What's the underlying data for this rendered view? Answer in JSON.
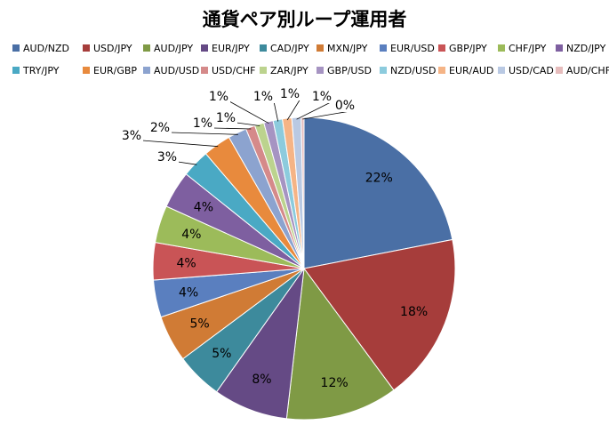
{
  "chart_data": {
    "type": "pie",
    "title": "通貨ペア別ループ運用者",
    "legend_position": "top",
    "categories": [
      "AUD/NZD",
      "USD/JPY",
      "AUD/JPY",
      "EUR/JPY",
      "CAD/JPY",
      "MXN/JPY",
      "EUR/USD",
      "GBP/JPY",
      "CHF/JPY",
      "NZD/JPY",
      "TRY/JPY",
      "EUR/GBP",
      "AUD/USD",
      "USD/CHF",
      "ZAR/JPY",
      "GBP/USD",
      "NZD/USD",
      "EUR/AUD",
      "USD/CAD",
      "AUD/CHF"
    ],
    "values": [
      22,
      18,
      12,
      8,
      5,
      5,
      4,
      4,
      4,
      4,
      3,
      3,
      2,
      1,
      1,
      1,
      1,
      1,
      1,
      0.3
    ],
    "labels": [
      "22%",
      "18%",
      "12%",
      "8%",
      "5%",
      "5%",
      "4%",
      "4%",
      "4%",
      "4%",
      "3%",
      "3%",
      "2%",
      "1%",
      "1%",
      "1%",
      "1%",
      "1%",
      "1%",
      "0%"
    ],
    "colors": [
      "#4a6fa5",
      "#a63d3b",
      "#7f9a45",
      "#654a85",
      "#3d8a9c",
      "#d07b35",
      "#5a7fbf",
      "#c95456",
      "#9cbb5a",
      "#7e5fa0",
      "#4aa9c4",
      "#e88a3d",
      "#8ca3cf",
      "#d58a8a",
      "#bcd38e",
      "#a694c2",
      "#8ccbdd",
      "#f5b486",
      "#b9c9e3",
      "#e6bcbc"
    ]
  }
}
